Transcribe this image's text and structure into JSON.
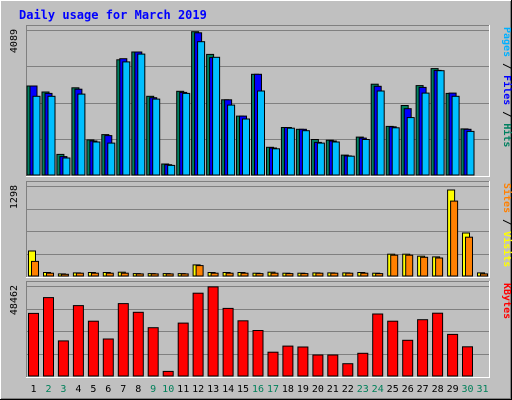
{
  "chart_data": {
    "title": "Daily usage for March 2019",
    "type": "bar",
    "days": [
      "1",
      "2",
      "3",
      "4",
      "5",
      "6",
      "7",
      "8",
      "9",
      "10",
      "11",
      "12",
      "13",
      "14",
      "15",
      "16",
      "17",
      "18",
      "19",
      "20",
      "21",
      "22",
      "23",
      "24",
      "25",
      "26",
      "27",
      "28",
      "29",
      "30",
      "31"
    ],
    "weekend_days": [
      "2",
      "3",
      "9",
      "10",
      "16",
      "17",
      "23",
      "24",
      "30",
      "31"
    ],
    "panels": [
      {
        "id": "requests",
        "max_label": "4089",
        "ymax": 4089,
        "right_labels": [
          {
            "text": "Pages",
            "color": "#00b0ff"
          },
          {
            "text": " / ",
            "color": "#000000"
          },
          {
            "text": "Files",
            "color": "#0000ff"
          },
          {
            "text": " / ",
            "color": "#000000"
          },
          {
            "text": "Hits",
            "color": "#008060"
          }
        ],
        "series": [
          {
            "name": "Hits",
            "color": "#008060",
            "values": [
              2510,
              2340,
              580,
              2460,
              990,
              1140,
              3250,
              3470,
              2220,
              310,
              2360,
              4040,
              3400,
              2120,
              1660,
              2840,
              780,
              1340,
              1290,
              1000,
              980,
              560,
              1070,
              2560,
              1370,
              1960,
              2520,
              3000,
              2300,
              1300,
              0
            ]
          },
          {
            "name": "Files",
            "color": "#0000ff",
            "values": [
              2510,
              2300,
              520,
              2420,
              960,
              1110,
              3280,
              3470,
              2180,
              290,
              2330,
              4010,
              3310,
              2120,
              1660,
              2840,
              760,
              1340,
              1290,
              920,
              960,
              540,
              1040,
              2500,
              1360,
              1870,
              2470,
              2950,
              2310,
              1290,
              0
            ]
          },
          {
            "name": "Pages",
            "color": "#00bfff",
            "values": [
              2220,
              2220,
              480,
              2280,
              930,
              900,
              3190,
              3410,
              2140,
              270,
              2300,
              3760,
              3320,
              1970,
              1580,
              2370,
              740,
              1320,
              1250,
              900,
              930,
              530,
              1000,
              2370,
              1330,
              1620,
              2310,
              2940,
              2220,
              1230,
              0
            ]
          }
        ]
      },
      {
        "id": "sites-visits",
        "max_label": "1298",
        "ymax": 1298,
        "right_labels": [
          {
            "text": "Sites",
            "color": "#ff8000"
          },
          {
            "text": " / ",
            "color": "#000000"
          },
          {
            "text": "Visits",
            "color": "#ffff00"
          }
        ],
        "series": [
          {
            "name": "Visits",
            "color": "#ffff00",
            "values": [
              360,
              50,
              30,
              45,
              50,
              50,
              55,
              35,
              35,
              35,
              35,
              160,
              50,
              50,
              50,
              40,
              55,
              40,
              40,
              45,
              45,
              45,
              50,
              40,
              315,
              315,
              285,
              275,
              1240,
              620,
              45
            ]
          },
          {
            "name": "Sites",
            "color": "#ff8000",
            "values": [
              210,
              40,
              25,
              40,
              40,
              40,
              40,
              30,
              30,
              30,
              30,
              150,
              40,
              40,
              40,
              35,
              40,
              35,
              35,
              40,
              40,
              40,
              40,
              35,
              300,
              300,
              270,
              260,
              1080,
              560,
              30
            ]
          }
        ]
      },
      {
        "id": "kbytes",
        "max_label": "48462",
        "ymax": 48462,
        "right_labels": [
          {
            "text": "KBytes",
            "color": "#ff0000"
          }
        ],
        "series": [
          {
            "name": "KBytes",
            "color": "#ff0000",
            "values": [
              33700,
              42200,
              18900,
              37900,
              29500,
              19900,
              39000,
              34300,
              26000,
              2500,
              28500,
              44600,
              48000,
              36400,
              29700,
              24500,
              12800,
              16100,
              15600,
              11300,
              11300,
              6600,
              12200,
              33400,
              29500,
              19200,
              30300,
              33800,
              22400,
              15700,
              0
            ]
          }
        ]
      }
    ]
  }
}
